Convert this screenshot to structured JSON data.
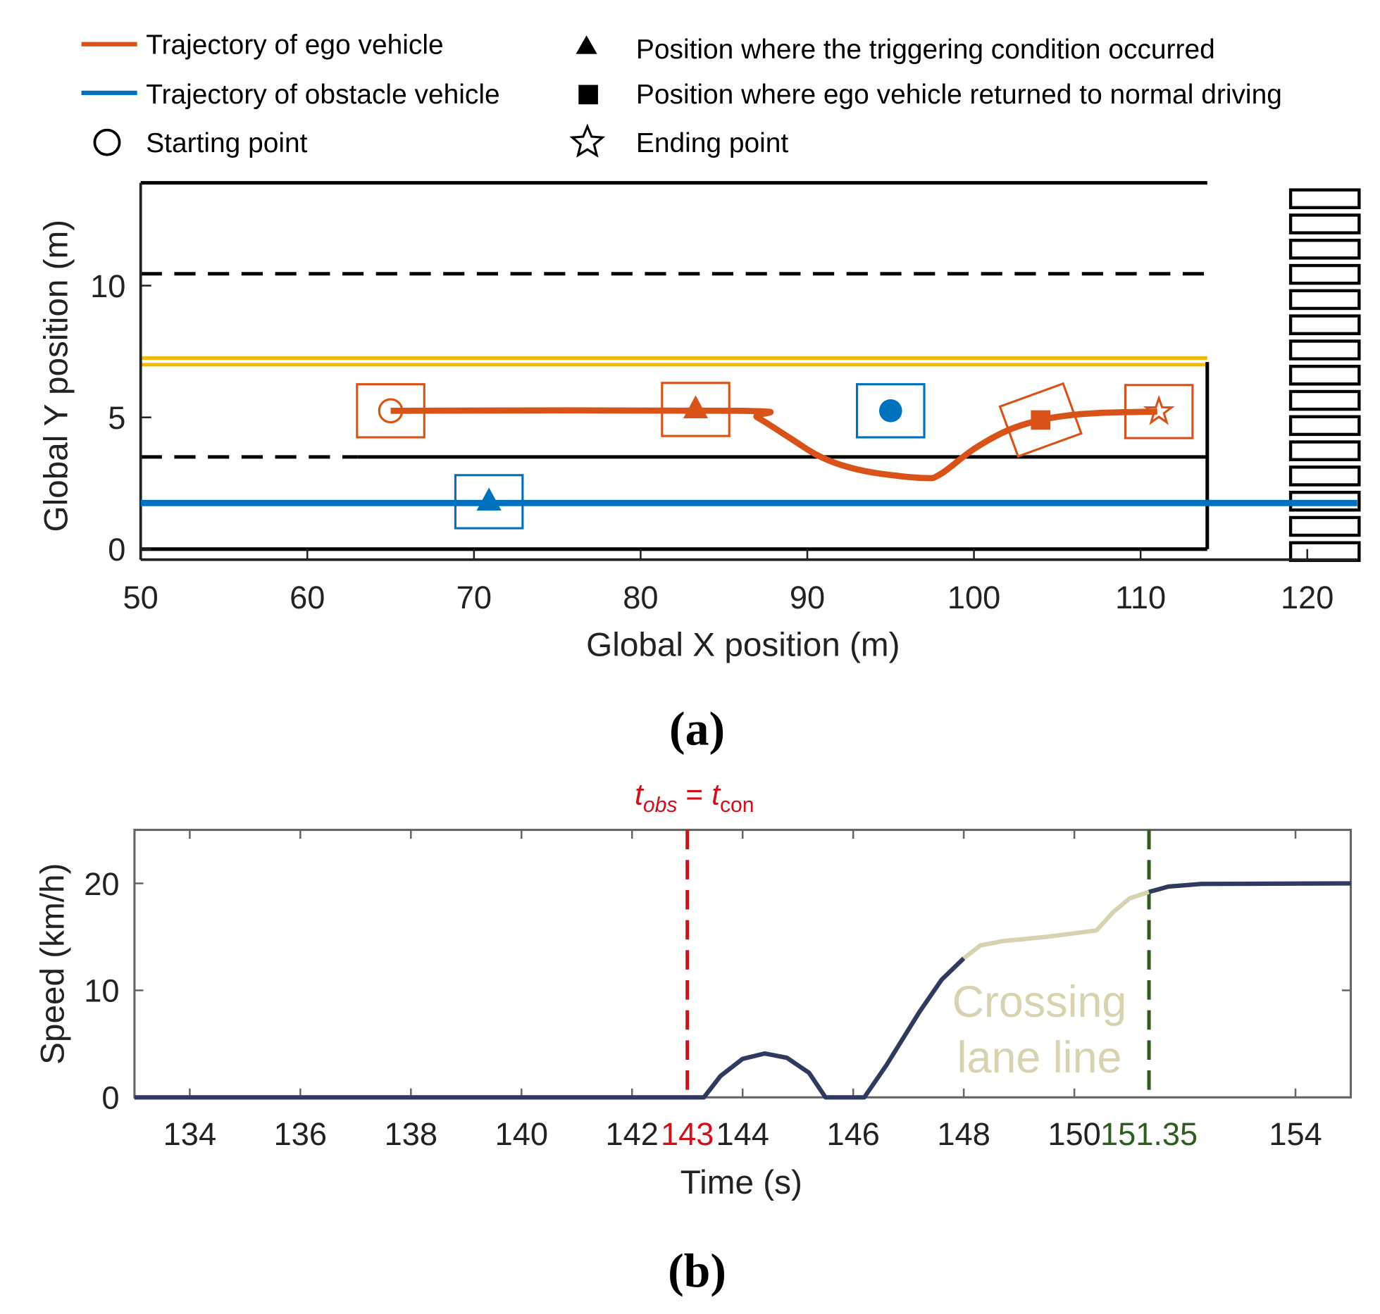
{
  "chart_data": [
    {
      "type": "line",
      "panel_label": "(a)",
      "xlabel": "Global X position (m)",
      "ylabel": "Global Y position (m)",
      "xlim": [
        50,
        123
      ],
      "ylim": [
        -0.4,
        13.9
      ],
      "xticks": [
        "50",
        "60",
        "70",
        "80",
        "90",
        "100",
        "110",
        "120"
      ],
      "yticks": [
        "0",
        "5",
        "10"
      ],
      "legend": {
        "placement": "top",
        "items": [
          {
            "label": "Trajectory of ego vehicle",
            "icon": "orange-line"
          },
          {
            "label": "Position where the triggering condition occurred",
            "icon": "triangle"
          },
          {
            "label": "Trajectory of obstacle vehicle",
            "icon": "blue-line"
          },
          {
            "label": "Position where ego vehicle returned to normal driving",
            "icon": "square"
          },
          {
            "label": "Starting point",
            "icon": "circle"
          },
          {
            "label": "Ending point",
            "icon": "star"
          }
        ]
      },
      "colors": {
        "ego": "#D95319",
        "obstacle": "#0072BD",
        "center_line": "#F5B800",
        "road": "#000000"
      },
      "ego_trajectory": [
        [
          65,
          5.25
        ],
        [
          86,
          5.25
        ],
        [
          87,
          5.0
        ],
        [
          89,
          4.2
        ],
        [
          90.5,
          3.6
        ],
        [
          92,
          3.2
        ],
        [
          94,
          2.9
        ],
        [
          97,
          2.7
        ],
        [
          98,
          2.85
        ],
        [
          100,
          3.8
        ],
        [
          102,
          4.5
        ],
        [
          104,
          4.9
        ],
        [
          106,
          5.1
        ],
        [
          108,
          5.18
        ],
        [
          111,
          5.22
        ]
      ],
      "obstacle_trajectory": [
        [
          50,
          1.75
        ],
        [
          123,
          1.75
        ]
      ],
      "markers": {
        "ego_start": [
          65,
          5.25
        ],
        "ego_trigger": [
          83.3,
          5.3
        ],
        "ego_return": [
          104,
          4.9
        ],
        "ego_end": [
          111.1,
          5.22
        ],
        "obstacle_trigger": [
          70.9,
          1.8
        ],
        "obstacle_end": [
          95,
          5.25
        ]
      }
    },
    {
      "type": "line",
      "panel_label": "(b)",
      "xlabel": "Time (s)",
      "ylabel": "Speed (km/h)",
      "xlim": [
        133,
        155
      ],
      "ylim": [
        0,
        25
      ],
      "xticks": [
        "134",
        "136",
        "138",
        "140",
        "142",
        "143",
        "144",
        "146",
        "148",
        "150",
        "151.35",
        "154"
      ],
      "yticks": [
        "0",
        "10",
        "20"
      ],
      "annotation_top": {
        "t": "t",
        "sub1": "obs",
        "eq": " = ",
        "t2": "t",
        "sub2": "con"
      },
      "annotation_region": [
        "Crossing",
        "lane line"
      ],
      "vlines": [
        {
          "x": 143,
          "color": "#D0101A"
        },
        {
          "x": 151.35,
          "color": "#2E5E1E"
        }
      ],
      "colors": {
        "speed": "#2F3A5E",
        "crossing": "#D8D2B0"
      },
      "series": [
        {
          "name": "speed-before",
          "points": [
            [
              133,
              0
            ],
            [
              143.3,
              0
            ],
            [
              143.6,
              2
            ],
            [
              144,
              3.6
            ],
            [
              144.4,
              4.1
            ],
            [
              144.8,
              3.7
            ],
            [
              145.2,
              2.3
            ],
            [
              145.5,
              0
            ],
            [
              146.2,
              0
            ],
            [
              146.6,
              3
            ],
            [
              147.2,
              8
            ],
            [
              147.6,
              11
            ],
            [
              148,
              13
            ]
          ]
        },
        {
          "name": "speed-crossing",
          "points": [
            [
              148,
              13
            ],
            [
              148.3,
              14.2
            ],
            [
              148.7,
              14.6
            ],
            [
              149.5,
              15
            ],
            [
              150.4,
              15.6
            ],
            [
              150.7,
              17.3
            ],
            [
              151,
              18.6
            ],
            [
              151.35,
              19.2
            ]
          ]
        },
        {
          "name": "speed-after",
          "points": [
            [
              151.35,
              19.2
            ],
            [
              151.7,
              19.7
            ],
            [
              152.3,
              19.95
            ],
            [
              155,
              20
            ]
          ]
        }
      ]
    }
  ]
}
